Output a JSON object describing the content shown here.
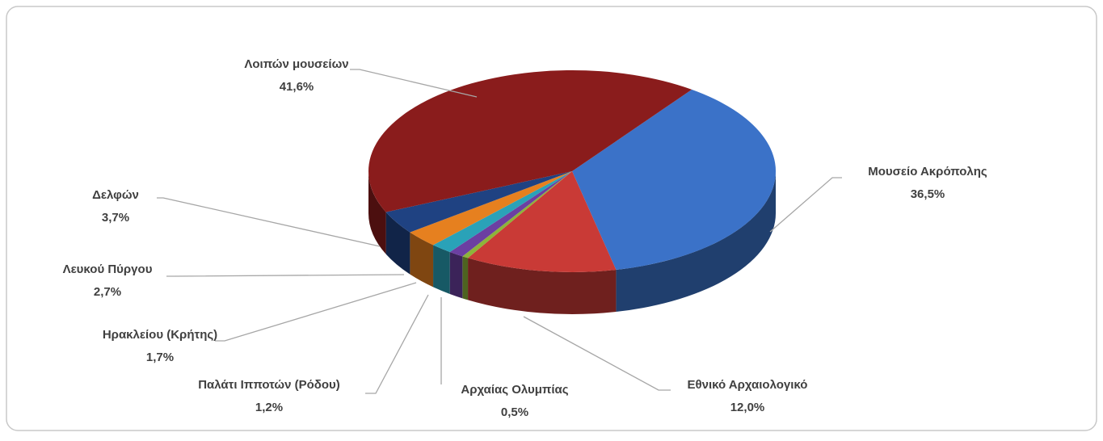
{
  "chart_data": {
    "type": "pie3d",
    "categories": [
      "Μουσείο Ακρόπολης",
      "Εθνικό Αρχαιολογικό",
      "Αρχαίας Ολυμπίας",
      "Παλάτι Ιπποτών (Ρόδου)",
      "Ηρακλείου (Κρήτης)",
      "Λευκού Πύργου",
      "Δελφών",
      "Λοιπών μουσείων"
    ],
    "values": [
      36.5,
      12.0,
      0.5,
      1.2,
      1.7,
      2.7,
      3.7,
      41.6
    ],
    "value_labels": [
      "36,5%",
      "12,0%",
      "0,5%",
      "1,2%",
      "1,7%",
      "2,7%",
      "3,7%",
      "41,6%"
    ],
    "colors": [
      "#3b72c8",
      "#c93a36",
      "#8db43a",
      "#6c3fa2",
      "#2aa2b8",
      "#e6801f",
      "#1f4282",
      "#8a1c1c"
    ]
  }
}
